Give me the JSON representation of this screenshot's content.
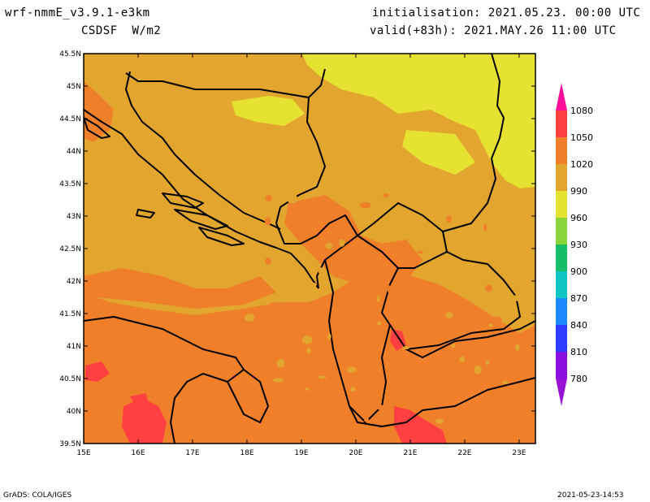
{
  "header": {
    "model": "wrf-nmmE_v3.9.1-e3km",
    "variable": "CSDSF  W/m2",
    "init": "initialisation: 2021.05.23. 00:00 UTC",
    "valid": "valid(+83h): 2021.MAY.26 11:00 UTC"
  },
  "footer": {
    "credit": "GrADS: COLA/IGES",
    "timestamp": "2021-05-23-14:53"
  },
  "map": {
    "lon_ticks": [
      "15E",
      "16E",
      "17E",
      "18E",
      "19E",
      "20E",
      "21E",
      "22E",
      "23E"
    ],
    "lat_ticks": [
      "45.5N",
      "45N",
      "44.5N",
      "44N",
      "43.5N",
      "43N",
      "42.5N",
      "42N",
      "41.5N",
      "41N",
      "40.5N",
      "40N",
      "39.5N"
    ],
    "lon_range": [
      15.0,
      23.3
    ],
    "lat_range": [
      39.5,
      45.5
    ]
  },
  "legend": {
    "levels": [
      {
        "label": "1080",
        "color": "#ff0f98"
      },
      {
        "label": "1050",
        "color": "#ff4040"
      },
      {
        "label": "1020",
        "color": "#f07f2a"
      },
      {
        "label": "990",
        "color": "#e2a52e"
      },
      {
        "label": "960",
        "color": "#e5e231"
      },
      {
        "label": "930",
        "color": "#8ad638"
      },
      {
        "label": "900",
        "color": "#16c06a"
      },
      {
        "label": "870",
        "color": "#10c4c4"
      },
      {
        "label": "840",
        "color": "#1a8cff"
      },
      {
        "label": "810",
        "color": "#2d3cff"
      },
      {
        "label": "780",
        "color": "#8a10e0"
      }
    ],
    "bottom_color": "#9a11d6"
  },
  "colors": {
    "yellow": "#e5e231",
    "gold": "#e2a52e",
    "orange": "#f07f2a",
    "red": "#ff4040",
    "border": "#000000"
  }
}
